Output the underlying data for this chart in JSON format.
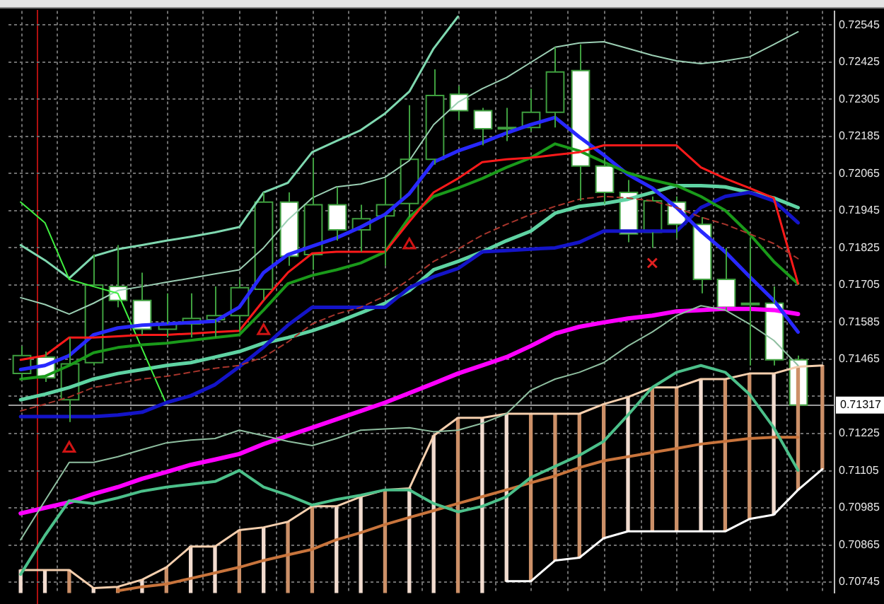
{
  "chart_data": {
    "type": "candlestick",
    "categories": [
      null,
      null,
      null,
      null,
      null,
      null,
      null,
      null,
      null,
      null,
      null,
      null,
      null,
      null,
      null,
      null,
      null,
      null,
      null,
      null,
      null,
      null,
      null,
      null,
      null,
      null,
      null,
      null,
      null,
      null,
      null,
      null,
      null,
      null
    ],
    "ohlc": [
      [
        0.71419,
        0.71508,
        0.71401,
        0.71477
      ],
      [
        0.71472,
        0.7149,
        0.71392,
        0.71405
      ],
      [
        0.71334,
        0.71535,
        0.71262,
        0.7145
      ],
      [
        0.71454,
        0.71803,
        0.71445,
        0.71705
      ],
      [
        0.717,
        0.71834,
        0.71633,
        0.71655
      ],
      [
        0.71655,
        0.71745,
        0.71544,
        0.71562
      ],
      [
        0.71562,
        0.71678,
        0.71535,
        0.71579
      ],
      [
        0.71579,
        0.71678,
        0.71535,
        0.71597
      ],
      [
        0.71593,
        0.717,
        0.71535,
        0.71606
      ],
      [
        0.71606,
        0.71723,
        0.71553,
        0.71696
      ],
      [
        0.71691,
        0.72004,
        0.71655,
        0.71973
      ],
      [
        0.71973,
        0.72004,
        0.71767,
        0.71798
      ],
      [
        0.71803,
        0.72116,
        0.71754,
        0.71964
      ],
      [
        0.71964,
        0.72022,
        0.71848,
        0.71883
      ],
      [
        0.71883,
        0.71964,
        0.71812,
        0.71919
      ],
      [
        0.71928,
        0.72049,
        0.71767,
        0.71964
      ],
      [
        0.71968,
        0.72286,
        0.71924,
        0.72111
      ],
      [
        0.72111,
        0.72402,
        0.72094,
        0.72317
      ],
      [
        0.72321,
        0.72348,
        0.72237,
        0.72268
      ],
      [
        0.72268,
        0.72277,
        0.72156,
        0.7221
      ],
      [
        0.7221,
        0.72277,
        0.7217,
        0.72214
      ],
      [
        0.72214,
        0.72339,
        0.72201,
        0.72263
      ],
      [
        0.72263,
        0.72473,
        0.72214,
        0.72393
      ],
      [
        0.72398,
        0.72482,
        0.71977,
        0.72089
      ],
      [
        0.72089,
        0.72116,
        0.71968,
        0.72004
      ],
      [
        0.72004,
        0.72044,
        0.71843,
        0.7187
      ],
      [
        0.71875,
        0.71991,
        0.71825,
        0.71977
      ],
      [
        0.71973,
        0.71991,
        0.71857,
        0.71901
      ],
      [
        0.71901,
        0.71924,
        0.71678,
        0.71723
      ],
      [
        0.71723,
        0.71825,
        0.71624,
        0.71633
      ],
      [
        0.71642,
        0.71857,
        0.71445,
        0.71646
      ],
      [
        0.71646,
        0.717,
        0.71445,
        0.71463
      ],
      [
        0.71463,
        0.71477,
        0.71317,
        0.71317
      ],
      null
    ],
    "color": "#3f9f3f",
    "colors": [
      "#000000",
      "#ffffff",
      "#000000",
      "#000000",
      "#ffffff",
      "#ffffff",
      "#000000",
      "#000000",
      "#000000",
      "#000000",
      "#000000",
      "#ffffff",
      "#000000",
      "#ffffff",
      "#000000",
      "#000000",
      "#000000",
      "#000000",
      "#ffffff",
      "#ffffff",
      "#000000",
      "#000000",
      "#000000",
      "#ffffff",
      "#ffffff",
      "#ffffff",
      "#000000",
      "#ffffff",
      "#ffffff",
      "#ffffff",
      "#000000",
      "#ffffff",
      "#ffffff",
      null
    ],
    "ylim": [
      0.7071,
      0.7259
    ],
    "yticks": [
      0.70745,
      0.70865,
      0.70985,
      0.71105,
      0.71225,
      {
        "value": 0.71345,
        "label": null
      },
      0.71465,
      0.71585,
      0.71705,
      0.71825,
      0.71945,
      0.72065,
      0.72185,
      0.72305,
      0.72425,
      0.72545
    ],
    "grid": true,
    "tick_labels": "y",
    "ref_lines": [
      {
        "axis": "y",
        "value": 0.71317,
        "label": "0.71317",
        "color": "#9a9a9a"
      }
    ],
    "series": [
      {
        "type": "bar",
        "colors": [
          "#f2dccf",
          "#f2dccf",
          "#cc9068",
          "#f2dccf",
          "#cc9068",
          "#f2dccf",
          "#cc9068",
          "#f2dccf",
          "#f2dccf",
          "#cc9068",
          "#f2dccf",
          "#cc9068",
          "#cc9068",
          "#f2dccf",
          "#f2dccf",
          "#cc9068",
          "#f2dccf",
          "#f2dccf",
          "#cc9068",
          "#f2dccf",
          "#f2dccf",
          "#cc9068",
          "#cc9068",
          "#cc9068",
          "#cc9068",
          "#f2dccf",
          "#cc9068",
          "#cc9068",
          "#f2dccf",
          "#cc9068",
          "#cc9068",
          "#f2dccf",
          "#cc9068",
          "#cc9068"
        ],
        "base": [
          null,
          null,
          null,
          null,
          null,
          null,
          null,
          null,
          null,
          null,
          null,
          null,
          null,
          null,
          null,
          null,
          null,
          null,
          null,
          null,
          0.70748,
          0.70748,
          0.70815,
          0.70824,
          0.70887,
          0.70909,
          0.70909,
          0.70909,
          0.70909,
          0.70909,
          0.70949,
          0.70963,
          0.71043,
          0.7111
        ],
        "values": [
          0.70784,
          0.70784,
          0.70784,
          0.70726,
          0.7073,
          0.70753,
          0.70793,
          0.7086,
          0.7086,
          0.70913,
          0.70922,
          0.7094,
          0.7099,
          0.7099,
          0.71021,
          0.71043,
          0.71048,
          0.71218,
          0.71276,
          0.71276,
          0.00541,
          0.00541,
          0.00474,
          0.00465,
          0.00433,
          0.00434,
          0.00465,
          0.00465,
          0.00492,
          0.00492,
          0.0047,
          0.00456,
          0.00398,
          0.00335
        ]
      },
      {
        "type": "line",
        "color": "#f5cfae",
        "values": [
          0.70784,
          0.70784,
          0.70784,
          0.70726,
          0.7073,
          0.70753,
          0.70793,
          0.7086,
          0.7086,
          0.70913,
          0.70922,
          0.7094,
          0.7099,
          0.7099,
          0.71021,
          0.71043,
          0.71048,
          0.71218,
          0.71276,
          0.71276,
          0.71289,
          0.71289,
          0.71289,
          0.71289,
          0.7132,
          0.71343,
          0.71374,
          0.71374,
          0.71401,
          0.71401,
          0.71419,
          0.71419,
          0.71441,
          0.71445
        ]
      },
      {
        "type": "line",
        "color": "#ffffff",
        "values": [
          null,
          null,
          null,
          null,
          null,
          null,
          null,
          null,
          null,
          null,
          null,
          null,
          null,
          null,
          null,
          null,
          null,
          null,
          null,
          null,
          0.70748,
          0.70748,
          0.70815,
          0.70824,
          0.70887,
          0.70909,
          0.70909,
          0.70909,
          0.70909,
          0.70909,
          0.70949,
          0.70963,
          0.71043,
          0.7111
        ]
      },
      {
        "type": "line",
        "color": "#c8743c",
        "values": [
          null,
          null,
          null,
          null,
          0.70717,
          0.7073,
          0.70739,
          0.70757,
          0.70775,
          0.70793,
          0.70815,
          0.70833,
          0.70851,
          0.70882,
          0.70905,
          0.70931,
          0.70954,
          0.70976,
          0.70999,
          0.71021,
          0.71043,
          0.71066,
          0.71088,
          0.71115,
          0.71137,
          0.7115,
          0.71164,
          0.71177,
          0.71191,
          0.712,
          0.71209,
          0.71213,
          0.71213,
          null
        ]
      },
      {
        "type": "line",
        "color": "#ff00ff",
        "values": [
          0.70967,
          0.70985,
          0.71003,
          0.7103,
          0.71052,
          0.71079,
          0.71101,
          0.71124,
          0.71141,
          0.71159,
          0.71191,
          0.71218,
          0.71244,
          0.71271,
          0.71298,
          0.71325,
          0.71356,
          0.71387,
          0.71419,
          0.71445,
          0.71472,
          0.71508,
          0.71548,
          0.7157,
          0.71584,
          0.71597,
          0.71606,
          0.7162,
          0.71624,
          0.71628,
          0.71628,
          0.71624,
          0.71611,
          null
        ]
      },
      {
        "type": "line",
        "color": "#4cc08a",
        "values": [
          0.7077,
          0.70896,
          0.71008,
          0.70999,
          0.71017,
          0.71039,
          0.71052,
          0.71061,
          0.7107,
          0.71106,
          0.71052,
          0.71026,
          0.70994,
          0.71012,
          0.71026,
          0.71043,
          0.71043,
          0.70999,
          0.70972,
          0.7099,
          0.71021,
          0.71083,
          0.71119,
          0.71155,
          0.712,
          0.71285,
          0.71374,
          0.71423,
          0.71445,
          0.71423,
          0.71352,
          0.71244,
          0.71106,
          null
        ]
      },
      {
        "type": "line",
        "color": "#8fbfa0",
        "values": [
          0.70882,
          0.71008,
          0.71132,
          0.71132,
          0.7115,
          0.71173,
          0.71195,
          0.71204,
          0.71209,
          0.71236,
          0.71218,
          0.712,
          0.71186,
          0.71209,
          0.71236,
          0.7124,
          0.71244,
          0.71231,
          0.71236,
          0.71258,
          0.71289,
          0.71365,
          0.71401,
          0.71423,
          0.71454,
          0.71508,
          0.71553,
          0.71606,
          0.71638,
          0.71624,
          0.71579,
          0.71526,
          0.71445,
          null
        ]
      },
      {
        "type": "line",
        "color": "#5fd3a3",
        "values": [
          0.71334,
          0.71352,
          0.71374,
          0.71401,
          0.71419,
          0.71432,
          0.71445,
          0.71454,
          0.71472,
          0.7149,
          0.71517,
          0.71535,
          0.71557,
          0.71584,
          0.71615,
          0.71646,
          0.71687,
          0.71754,
          0.71781,
          0.71812,
          0.71848,
          0.71879,
          0.71937,
          0.71959,
          0.71968,
          0.71982,
          0.72004,
          0.72026,
          0.72026,
          0.72022,
          0.72004,
          0.71986,
          0.71955,
          null
        ]
      },
      {
        "type": "line",
        "color": "#7fd8b0",
        "values": [
          0.71834,
          0.71785,
          0.71727,
          0.71798,
          0.71821,
          0.71834,
          0.71848,
          0.71861,
          0.71875,
          0.71892,
          0.72004,
          0.72035,
          0.72134,
          0.7217,
          0.72205,
          0.72259,
          0.7233,
          0.72469,
          0.72572,
          null,
          null,
          null,
          null,
          null,
          null,
          null,
          null,
          null,
          null,
          null,
          null,
          null,
          null,
          null
        ]
      },
      {
        "type": "line",
        "color": "#9ccfb4",
        "values": [
          0.71664,
          0.71642,
          0.71611,
          0.71646,
          0.71687,
          0.717,
          0.71714,
          0.71727,
          0.71741,
          0.71754,
          0.71825,
          0.71915,
          0.71986,
          0.72022,
          0.72031,
          0.72053,
          0.72107,
          0.72223,
          0.72295,
          0.72339,
          0.72375,
          0.72424,
          0.72473,
          0.72487,
          0.72491,
          0.72469,
          0.72447,
          0.72429,
          0.7242,
          0.72429,
          0.72442,
          0.72482,
          0.72523,
          null
        ]
      },
      {
        "type": "line",
        "color": "#40f040",
        "values": [
          0.71973,
          0.71906,
          0.71723,
          0.717,
          0.71678,
          0.71499,
          0.7132,
          null,
          null,
          null,
          null,
          null,
          null,
          null,
          null,
          null,
          null,
          null,
          null,
          null,
          null,
          null,
          null,
          null,
          null,
          null,
          null,
          null,
          null,
          null,
          null,
          null,
          null,
          null
        ]
      },
      {
        "type": "line",
        "color": "#1414c8",
        "values": [
          0.7128,
          0.7128,
          0.7128,
          0.7128,
          0.71285,
          0.71294,
          0.71325,
          0.71347,
          0.71383,
          0.71441,
          0.71504,
          0.71575,
          0.71633,
          0.71633,
          0.71633,
          0.71633,
          0.71696,
          0.71732,
          0.71758,
          0.71812,
          0.71816,
          0.71821,
          0.71825,
          0.71843,
          0.71879,
          0.71879,
          0.71879,
          0.71879,
          0.71955,
          0.71991,
          0.72004,
          0.71977,
          0.71906,
          null
        ]
      },
      {
        "type": "line",
        "color": "#2828ff",
        "values": [
          0.71432,
          0.71445,
          0.71477,
          0.71544,
          0.71566,
          0.71575,
          0.71579,
          0.71584,
          0.71588,
          0.71633,
          0.71745,
          0.71803,
          0.7183,
          0.71857,
          0.71892,
          0.71933,
          0.72,
          0.72102,
          0.72138,
          0.72165,
          0.72196,
          0.72223,
          0.72246,
          0.72183,
          0.72125,
          0.72062,
          0.72018,
          0.71955,
          0.71879,
          0.71812,
          0.71732,
          0.71655,
          0.71553,
          null
        ]
      },
      {
        "type": "line",
        "color": "#1a9a1a",
        "values": [
          0.71401,
          0.7141,
          0.71445,
          0.71486,
          0.71503,
          0.71512,
          0.71517,
          0.71526,
          0.71535,
          0.71544,
          0.71624,
          0.71709,
          0.71736,
          0.71754,
          0.71776,
          0.71812,
          0.71924,
          0.71991,
          0.72018,
          0.72049,
          0.72085,
          0.72116,
          0.72161,
          0.72138,
          0.72102,
          0.72067,
          0.72044,
          0.72026,
          0.71991,
          0.71946,
          0.7187,
          0.71781,
          0.71709,
          null
        ]
      },
      {
        "type": "line",
        "color": "#ff1a1a",
        "values": [
          0.71463,
          0.71477,
          0.71535,
          0.71535,
          0.71539,
          0.71544,
          0.71544,
          0.71548,
          0.71553,
          0.71557,
          0.71655,
          0.71745,
          0.71807,
          0.71812,
          0.71812,
          0.71812,
          0.7191,
          0.72004,
          0.72049,
          0.72102,
          0.72111,
          0.72116,
          0.72125,
          0.72134,
          0.72156,
          0.72156,
          0.72156,
          0.72156,
          0.72085,
          0.72049,
          0.72018,
          0.71986,
          0.71709,
          null
        ]
      },
      {
        "type": "line",
        "color": "#a8352c",
        "line_style": "dashed",
        "values": [
          0.71298,
          0.7132,
          0.71343,
          0.71374,
          0.71387,
          0.71401,
          0.7141,
          0.71423,
          0.71436,
          0.71445,
          0.71472,
          0.71521,
          0.71579,
          0.71611,
          0.71633,
          0.71669,
          0.71723,
          0.71781,
          0.71821,
          0.71866,
          0.71901,
          0.71933,
          0.71959,
          0.71982,
          0.71991,
          0.71986,
          0.71977,
          0.71955,
          0.71924,
          0.71901,
          0.7187,
          0.71839,
          0.7179,
          null
        ]
      },
      {
        "type": "scatter",
        "color": "#d01414",
        "marker": "triangle",
        "values": [
          null,
          null,
          0.71177,
          null,
          null,
          null,
          null,
          null,
          null,
          null,
          0.71557,
          null,
          null,
          null,
          null,
          null,
          0.71834,
          null,
          null,
          null,
          null,
          null,
          null,
          null,
          null,
          null,
          null,
          null,
          null,
          null,
          null,
          null,
          null,
          null
        ]
      },
      {
        "type": "scatter",
        "color": "#e02020",
        "marker": "cross",
        "values": [
          null,
          null,
          null,
          null,
          null,
          null,
          null,
          null,
          null,
          null,
          null,
          null,
          null,
          null,
          null,
          null,
          null,
          null,
          null,
          null,
          null,
          null,
          null,
          null,
          null,
          null,
          0.71776,
          null,
          null,
          null,
          null,
          null,
          null,
          null
        ]
      }
    ]
  }
}
